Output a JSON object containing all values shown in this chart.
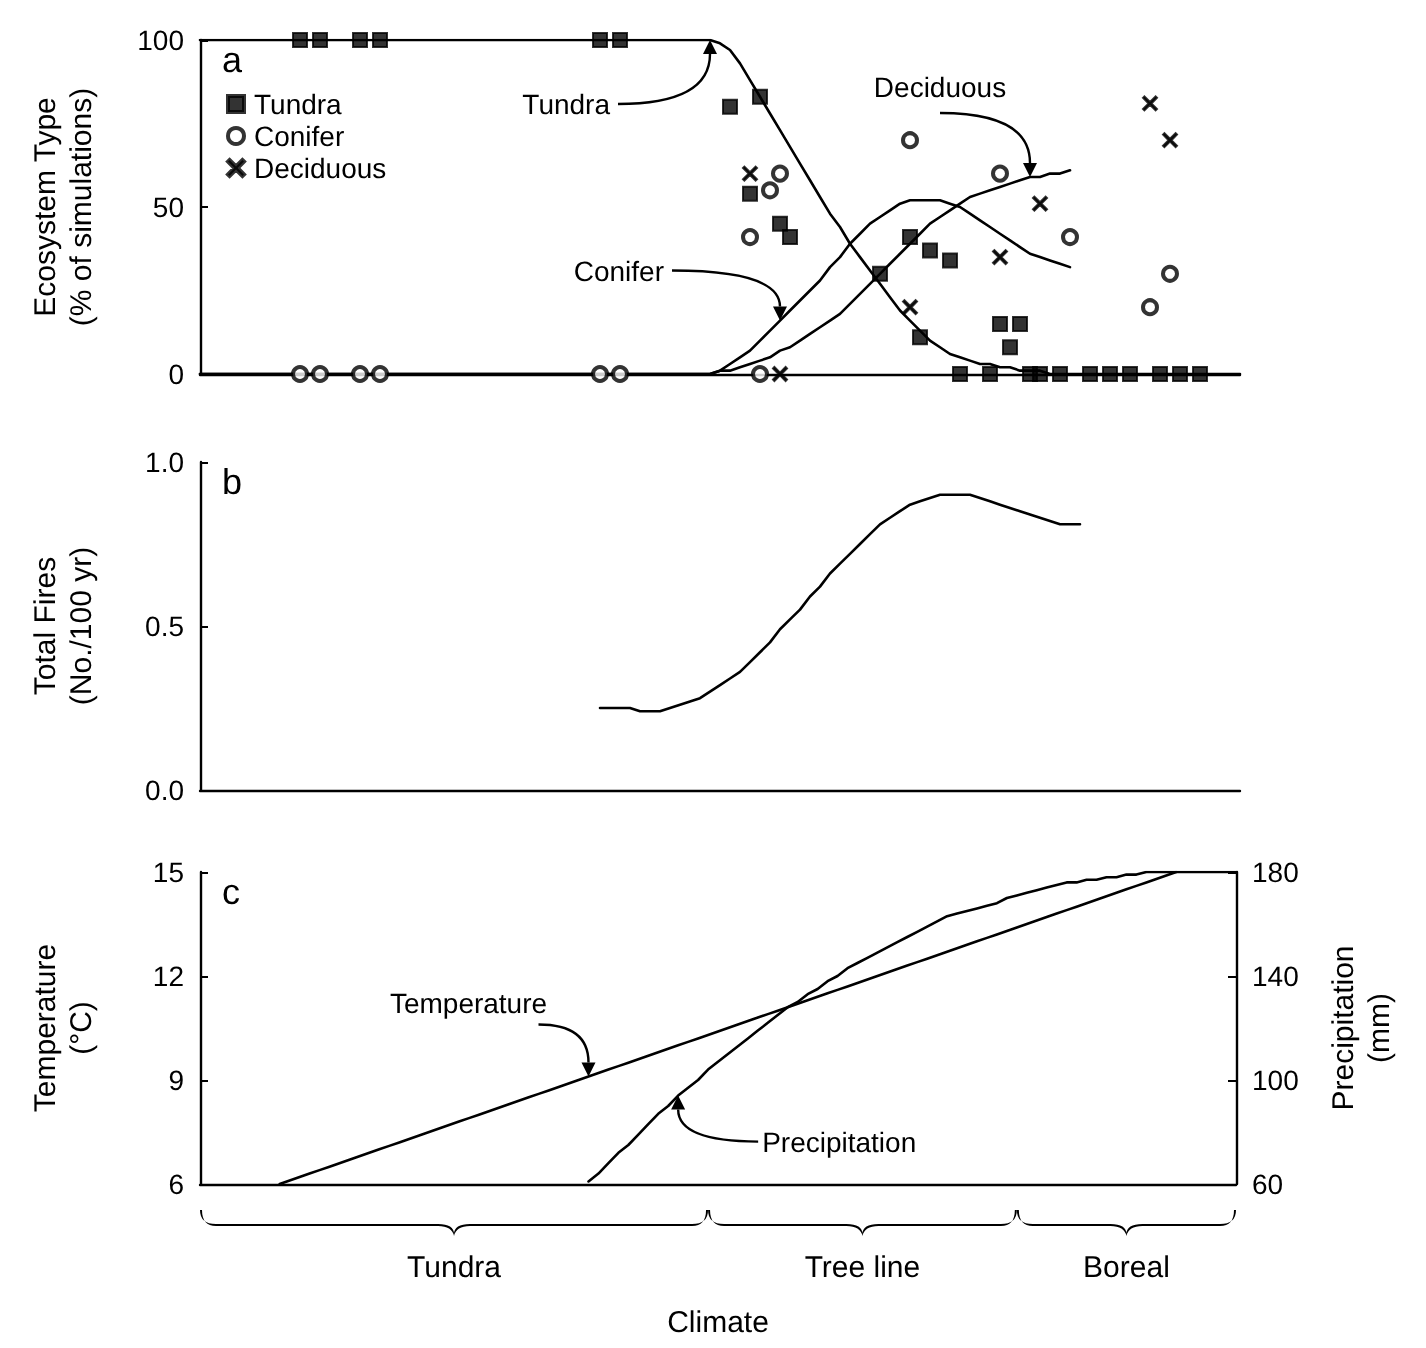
{
  "chart_data": [
    {
      "type": "line",
      "title": "a",
      "annotations": [
        "Tundra",
        "Conifer",
        "Deciduous"
      ],
      "ylabel": "Ecosystem Type (% of simulations)",
      "categories": [
        null,
        null,
        null,
        null,
        null,
        null,
        null,
        null,
        null,
        null,
        null,
        null,
        null,
        null,
        null,
        null,
        null,
        null,
        null,
        null,
        null,
        null,
        null,
        null,
        null,
        null,
        null,
        null,
        null,
        null,
        null,
        null,
        null,
        null,
        null,
        null,
        null,
        null,
        null,
        null,
        null,
        null,
        null,
        null,
        null,
        null,
        null,
        null,
        null,
        null,
        null,
        null,
        null,
        null,
        null,
        null,
        null,
        null,
        null,
        null,
        null,
        null,
        null,
        null,
        null,
        null,
        null,
        null,
        null,
        null,
        null,
        null,
        null,
        null,
        null,
        null,
        null,
        null,
        null,
        null,
        null,
        null,
        null,
        null,
        null,
        null,
        null,
        null,
        null,
        null,
        null,
        null,
        null,
        null,
        null,
        null,
        null,
        null,
        null,
        null,
        null,
        null,
        null,
        null,
        null
      ],
      "ylim": [
        0,
        100
      ],
      "yticks": [
        0,
        50,
        100
      ],
      "tick_labels": "y",
      "grid": false,
      "legend": "top left",
      "series": [
        {
          "color": "#000000",
          "values": [
            100,
            100,
            100,
            100,
            100,
            100,
            100,
            100,
            100,
            100,
            100,
            100,
            100,
            100,
            100,
            100,
            100,
            100,
            100,
            100,
            100,
            100,
            100,
            100,
            100,
            100,
            100,
            100,
            100,
            100,
            100,
            100,
            100,
            100,
            100,
            100,
            100,
            100,
            100,
            100,
            100,
            100,
            100,
            100,
            100,
            100,
            100,
            100,
            100,
            100,
            100,
            100,
            99,
            97,
            93,
            88,
            83,
            78,
            73,
            68,
            63,
            58,
            53,
            48,
            44,
            39,
            35,
            31,
            27,
            23,
            19,
            16,
            13,
            10,
            8,
            6,
            5,
            4,
            3,
            3,
            2,
            2,
            1,
            1,
            1,
            0,
            0,
            0,
            0,
            0,
            0,
            0,
            0,
            0,
            0,
            0,
            0,
            0,
            0,
            0,
            0,
            0,
            0,
            0,
            0
          ]
        },
        {
          "color": "#000000",
          "values": [
            0,
            0,
            0,
            0,
            0,
            0,
            0,
            0,
            0,
            0,
            0,
            0,
            0,
            0,
            0,
            0,
            0,
            0,
            0,
            0,
            0,
            0,
            0,
            0,
            0,
            0,
            0,
            0,
            0,
            0,
            0,
            0,
            0,
            0,
            0,
            0,
            0,
            0,
            0,
            0,
            0,
            0,
            0,
            0,
            0,
            0,
            0,
            0,
            0,
            0,
            0,
            0,
            1,
            3,
            5,
            7,
            10,
            13,
            16,
            19,
            22,
            25,
            28,
            32,
            35,
            39,
            42,
            45,
            47,
            49,
            51,
            52,
            52,
            52,
            52,
            51,
            50,
            48,
            46,
            44,
            42,
            40,
            38,
            36,
            35,
            34,
            33,
            32,
            null,
            null,
            null,
            null,
            null,
            null,
            null,
            null,
            null,
            null,
            null,
            null,
            null,
            null,
            null,
            null,
            null
          ]
        },
        {
          "color": "#000000",
          "values": [
            0,
            0,
            0,
            0,
            0,
            0,
            0,
            0,
            0,
            0,
            0,
            0,
            0,
            0,
            0,
            0,
            0,
            0,
            0,
            0,
            0,
            0,
            0,
            0,
            0,
            0,
            0,
            0,
            0,
            0,
            0,
            0,
            0,
            0,
            0,
            0,
            0,
            0,
            0,
            0,
            0,
            0,
            0,
            0,
            0,
            0,
            0,
            0,
            0,
            0,
            0,
            0,
            1,
            1,
            2,
            3,
            4,
            5,
            7,
            8,
            10,
            12,
            14,
            16,
            18,
            21,
            24,
            27,
            30,
            33,
            36,
            39,
            42,
            45,
            47,
            49,
            51,
            53,
            54,
            55,
            56,
            57,
            58,
            59,
            59,
            60,
            60,
            61,
            null,
            null,
            null,
            null,
            null,
            null,
            null,
            null,
            null,
            null,
            null,
            null,
            null,
            null,
            null,
            null,
            null
          ]
        },
        {
          "name": "Tundra",
          "type": "scatter",
          "marker": "square",
          "color": "#000000",
          "values": [
            null,
            null,
            null,
            null,
            null,
            null,
            null,
            null,
            null,
            null,
            100,
            null,
            100,
            null,
            null,
            null,
            100,
            null,
            100,
            null,
            null,
            null,
            null,
            null,
            null,
            null,
            null,
            null,
            null,
            null,
            null,
            null,
            null,
            null,
            null,
            null,
            null,
            null,
            null,
            null,
            100,
            null,
            100,
            null,
            null,
            null,
            null,
            null,
            null,
            null,
            null,
            null,
            null,
            80,
            null,
            54,
            83,
            null,
            45,
            41,
            null,
            null,
            null,
            null,
            null,
            null,
            null,
            null,
            30,
            null,
            null,
            41,
            11,
            37,
            null,
            34,
            0,
            null,
            null,
            0,
            15,
            8,
            15,
            0,
            0,
            null,
            0,
            null,
            null,
            0,
            null,
            0,
            null,
            0,
            null,
            null,
            0,
            null,
            0,
            null,
            0,
            null,
            null,
            null,
            null
          ]
        },
        {
          "name": "Conifer",
          "type": "scatter",
          "marker": "circle",
          "color": "#000000",
          "values": [
            null,
            null,
            null,
            null,
            null,
            null,
            null,
            null,
            null,
            null,
            0,
            null,
            0,
            null,
            null,
            null,
            0,
            null,
            0,
            null,
            null,
            null,
            null,
            null,
            null,
            null,
            null,
            null,
            null,
            null,
            null,
            null,
            null,
            null,
            null,
            null,
            null,
            null,
            null,
            null,
            0,
            null,
            0,
            null,
            null,
            null,
            null,
            null,
            null,
            null,
            null,
            null,
            null,
            null,
            null,
            41,
            0,
            55,
            60,
            null,
            null,
            null,
            null,
            null,
            null,
            null,
            null,
            null,
            null,
            null,
            null,
            70,
            null,
            null,
            null,
            null,
            null,
            null,
            null,
            null,
            60,
            null,
            null,
            null,
            null,
            null,
            null,
            41,
            null,
            null,
            null,
            null,
            null,
            null,
            null,
            20,
            null,
            30,
            null,
            null,
            null,
            null,
            null,
            null,
            null
          ]
        },
        {
          "name": "Deciduous",
          "type": "scatter",
          "marker": "cross",
          "color": "#000000",
          "values": [
            null,
            null,
            null,
            null,
            null,
            null,
            null,
            null,
            null,
            null,
            null,
            null,
            null,
            null,
            null,
            null,
            null,
            null,
            null,
            null,
            null,
            null,
            null,
            null,
            null,
            null,
            null,
            null,
            null,
            null,
            null,
            null,
            null,
            null,
            null,
            null,
            null,
            null,
            null,
            null,
            null,
            null,
            null,
            null,
            null,
            null,
            null,
            null,
            null,
            null,
            null,
            null,
            null,
            null,
            null,
            60,
            null,
            null,
            0,
            null,
            null,
            null,
            null,
            null,
            null,
            null,
            null,
            null,
            null,
            null,
            null,
            20,
            null,
            null,
            null,
            null,
            null,
            null,
            null,
            null,
            35,
            null,
            null,
            null,
            51,
            null,
            null,
            null,
            null,
            null,
            null,
            null,
            null,
            null,
            null,
            81,
            null,
            70,
            null,
            null,
            null,
            null,
            null,
            null,
            null
          ]
        }
      ]
    },
    {
      "type": "line",
      "title": "b",
      "ylabel": "Total Fires (No./100 yr)",
      "categories": [
        null,
        null,
        null,
        null,
        null,
        null,
        null,
        null,
        null,
        null,
        null,
        null,
        null,
        null,
        null,
        null,
        null,
        null,
        null,
        null,
        null,
        null,
        null,
        null,
        null,
        null,
        null,
        null,
        null,
        null,
        null,
        null,
        null,
        null,
        null,
        null,
        null,
        null,
        null,
        null,
        null,
        null,
        null,
        null,
        null,
        null,
        null,
        null,
        null,
        null,
        null,
        null,
        null,
        null,
        null,
        null,
        null,
        null,
        null,
        null,
        null,
        null,
        null,
        null,
        null,
        null,
        null,
        null,
        null,
        null,
        null,
        null,
        null,
        null,
        null,
        null,
        null,
        null,
        null,
        null,
        null,
        null,
        null,
        null,
        null,
        null,
        null,
        null,
        null,
        null,
        null,
        null,
        null,
        null,
        null,
        null,
        null,
        null,
        null,
        null,
        null,
        null,
        null,
        null,
        null
      ],
      "ylim": [
        0,
        1
      ],
      "yticks": [
        {
          "value": 0,
          "label": "0.0"
        },
        {
          "value": 0.5,
          "label": "0.5"
        },
        {
          "value": 1,
          "label": "1.0"
        }
      ],
      "tick_labels": "y",
      "grid": false,
      "series": [
        {
          "color": "#000000",
          "values": [
            null,
            null,
            null,
            null,
            null,
            null,
            null,
            null,
            null,
            null,
            null,
            null,
            null,
            null,
            null,
            null,
            null,
            null,
            null,
            null,
            null,
            null,
            null,
            null,
            null,
            null,
            null,
            null,
            null,
            null,
            null,
            null,
            null,
            null,
            null,
            null,
            null,
            null,
            null,
            null,
            0.25,
            0.25,
            0.25,
            0.25,
            0.24,
            0.24,
            0.24,
            0.25,
            0.26,
            0.27,
            0.28,
            0.3,
            0.32,
            0.34,
            0.36,
            0.39,
            0.42,
            0.45,
            0.49,
            0.52,
            0.55,
            0.59,
            0.62,
            0.66,
            0.69,
            0.72,
            0.75,
            0.78,
            0.81,
            0.83,
            0.85,
            0.87,
            0.88,
            0.89,
            0.9,
            0.9,
            0.9,
            0.9,
            0.89,
            0.88,
            0.87,
            0.86,
            0.85,
            0.84,
            0.83,
            0.82,
            0.81,
            0.81,
            0.81,
            null,
            null,
            null,
            null,
            null,
            null,
            null,
            null,
            null,
            null,
            null,
            null,
            null,
            null,
            null,
            null
          ]
        }
      ]
    },
    {
      "type": "line",
      "title": "c",
      "xlabel": "Climate",
      "ylabel": "Temperature (°C)",
      "y2label": "Precipitation (mm)",
      "annotations": [
        "Tundra",
        "Tree line",
        "Boreal"
      ],
      "categories": [
        null,
        null,
        null,
        null,
        null,
        null,
        null,
        null,
        null,
        null,
        null,
        null,
        null,
        null,
        null,
        null,
        null,
        null,
        null,
        null,
        null,
        null,
        null,
        null,
        null,
        null,
        null,
        null,
        null,
        null,
        null,
        null,
        null,
        null,
        null,
        null,
        null,
        null,
        null,
        null,
        null,
        null,
        null,
        null,
        null,
        null,
        null,
        null,
        null,
        null,
        null,
        null,
        null,
        null,
        null,
        null,
        null,
        null,
        null,
        null,
        null,
        null,
        null,
        null,
        null,
        null,
        null,
        null,
        null,
        null,
        null,
        null,
        null,
        null,
        null,
        null,
        null,
        null,
        null,
        null,
        null,
        null,
        null,
        null,
        null,
        null,
        null,
        null,
        null,
        null,
        null,
        null,
        null,
        null,
        null,
        null,
        null,
        null,
        null,
        null,
        null,
        null,
        null,
        null,
        null
      ],
      "ylim": [
        6,
        15
      ],
      "yticks": [
        6,
        9,
        12,
        15
      ],
      "y2lim": [
        60,
        180
      ],
      "y2ticks": [
        60,
        100,
        140,
        180
      ],
      "tick_labels": "y",
      "grid": false,
      "series": [
        {
          "name": "Temperature",
          "color": "#000000",
          "values": [
            null,
            null,
            null,
            null,
            null,
            null,
            null,
            null,
            6,
            6.1,
            6.2,
            6.3,
            6.4,
            6.5,
            6.6,
            6.7,
            6.8,
            6.9,
            7,
            7.1,
            7.2,
            7.3,
            7.4,
            7.5,
            7.6,
            7.7,
            7.8,
            7.9,
            8,
            8.1,
            8.2,
            8.3,
            8.4,
            8.5,
            8.6,
            8.7,
            8.8,
            8.9,
            9,
            9.1,
            9.2,
            9.3,
            9.4,
            9.5,
            9.6,
            9.7,
            9.8,
            9.9,
            10,
            10.1,
            10.2,
            10.3,
            10.4,
            10.5,
            10.6,
            10.7,
            10.8,
            10.9,
            11,
            11.1,
            11.2,
            11.3,
            11.4,
            11.5,
            11.6,
            11.7,
            11.8,
            11.9,
            12,
            12.1,
            12.2,
            12.3,
            12.4,
            12.5,
            12.6,
            12.7,
            12.8,
            12.9,
            13,
            13.1,
            13.2,
            13.3,
            13.4,
            13.5,
            13.6,
            13.7,
            13.8,
            13.9,
            14,
            14.1,
            14.2,
            14.3,
            14.4,
            14.5,
            14.6,
            14.7,
            14.8,
            14.9,
            15,
            null,
            null,
            null,
            null,
            null,
            null
          ]
        },
        {
          "name": "Precipitation",
          "axis": "y2",
          "color": "#000000",
          "values": [
            null,
            null,
            null,
            null,
            null,
            null,
            null,
            null,
            null,
            null,
            null,
            null,
            null,
            null,
            null,
            null,
            null,
            null,
            null,
            null,
            null,
            null,
            null,
            null,
            null,
            null,
            null,
            null,
            null,
            null,
            null,
            null,
            null,
            null,
            null,
            null,
            null,
            null,
            null,
            61,
            64,
            68,
            72,
            75,
            79,
            83,
            87,
            90,
            94,
            97,
            100,
            104,
            107,
            110,
            113,
            116,
            119,
            122,
            125,
            128,
            130,
            133,
            135,
            138,
            140,
            143,
            145,
            147,
            149,
            151,
            153,
            155,
            157,
            159,
            161,
            163,
            164,
            165,
            166,
            167,
            168,
            170,
            171,
            172,
            173,
            174,
            175,
            176,
            176,
            177,
            177,
            178,
            178,
            179,
            179,
            180,
            180,
            180,
            180,
            180,
            180,
            180,
            180,
            180,
            180
          ]
        }
      ]
    }
  ]
}
